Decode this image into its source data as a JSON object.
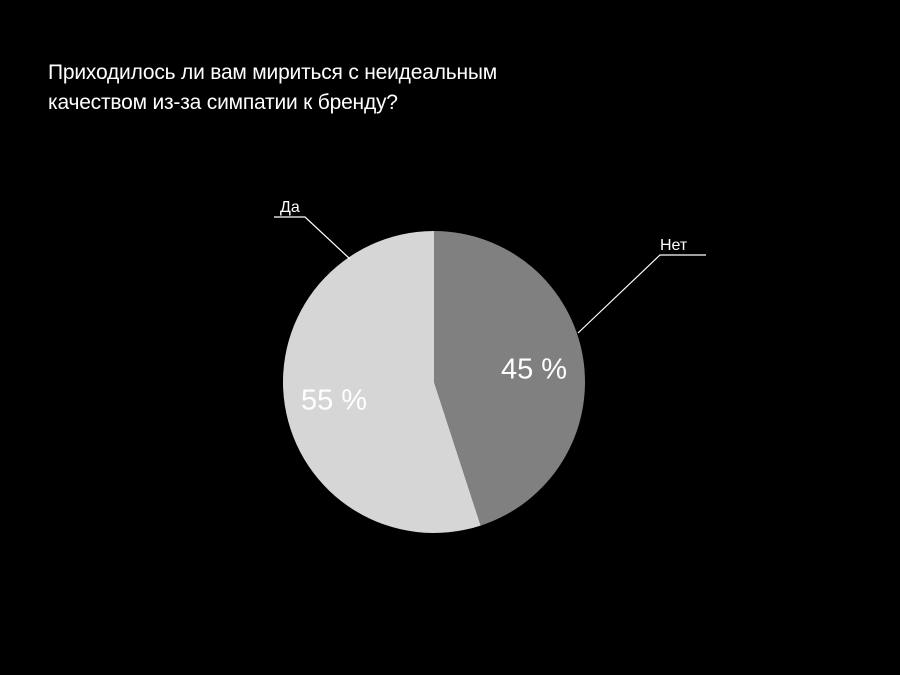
{
  "chart_data": {
    "type": "pie",
    "title_lines": [
      "Приходилось ли вам мириться с неидеальным",
      "качеством из-за симпатии к бренду?"
    ],
    "slices": [
      {
        "label": "Нет",
        "value": 45,
        "value_label": "45 %",
        "color": "#808080"
      },
      {
        "label": "Да",
        "value": 55,
        "value_label": "55 %",
        "color": "#d6d6d6"
      }
    ],
    "start_angle_deg": 0,
    "direction": "clockwise",
    "background": "#000000",
    "text_color": "#ffffff"
  }
}
